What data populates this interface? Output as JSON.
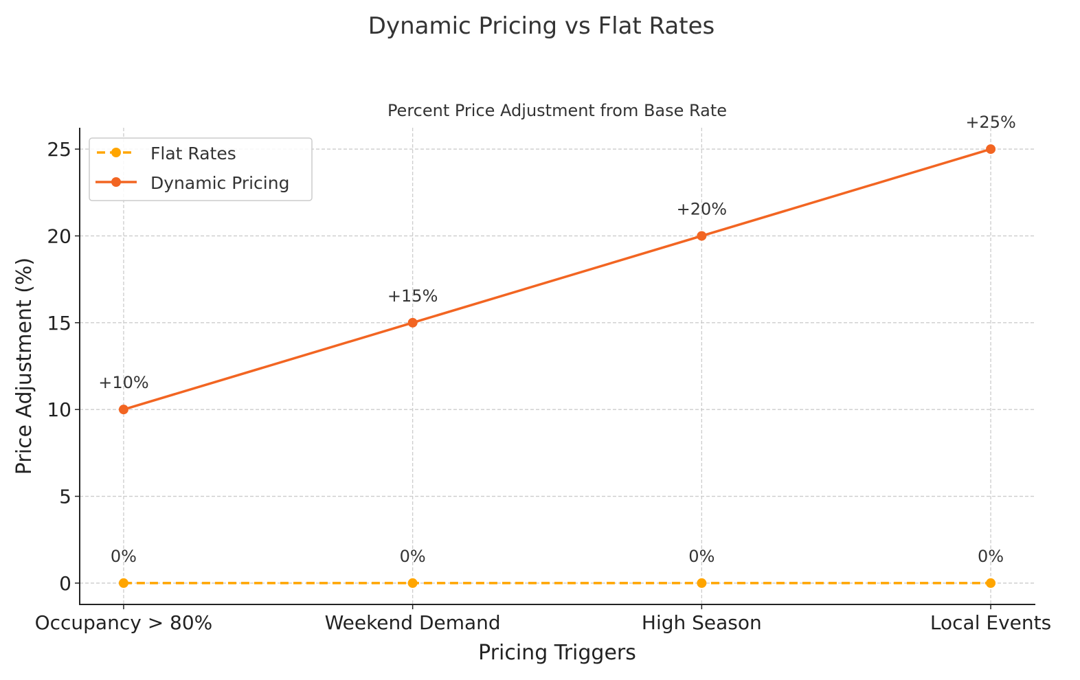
{
  "chart_data": {
    "type": "line",
    "title": "Dynamic Pricing vs Flat Rates",
    "subtitle": "Percent Price Adjustment from Base Rate",
    "xlabel": "Pricing Triggers",
    "ylabel": "Price Adjustment (%)",
    "categories": [
      "Occupancy > 80%",
      "Weekend Demand",
      "High Season",
      "Local Events"
    ],
    "ylim": [
      -1.23,
      26.23
    ],
    "yticks": [
      0,
      5,
      10,
      15,
      20,
      25
    ],
    "grid": true,
    "legend_position": "top-left",
    "series": [
      {
        "name": "Flat Rates",
        "values": [
          0,
          0,
          0,
          0
        ],
        "labels": [
          "0%",
          "0%",
          "0%",
          "0%"
        ],
        "color": "#FFA500",
        "linestyle": "dashed",
        "marker": "circle"
      },
      {
        "name": "Dynamic Pricing",
        "values": [
          10,
          15,
          20,
          25
        ],
        "labels": [
          "+10%",
          "+15%",
          "+20%",
          "+25%"
        ],
        "color": "#F26522",
        "linestyle": "solid",
        "marker": "circle"
      }
    ]
  }
}
